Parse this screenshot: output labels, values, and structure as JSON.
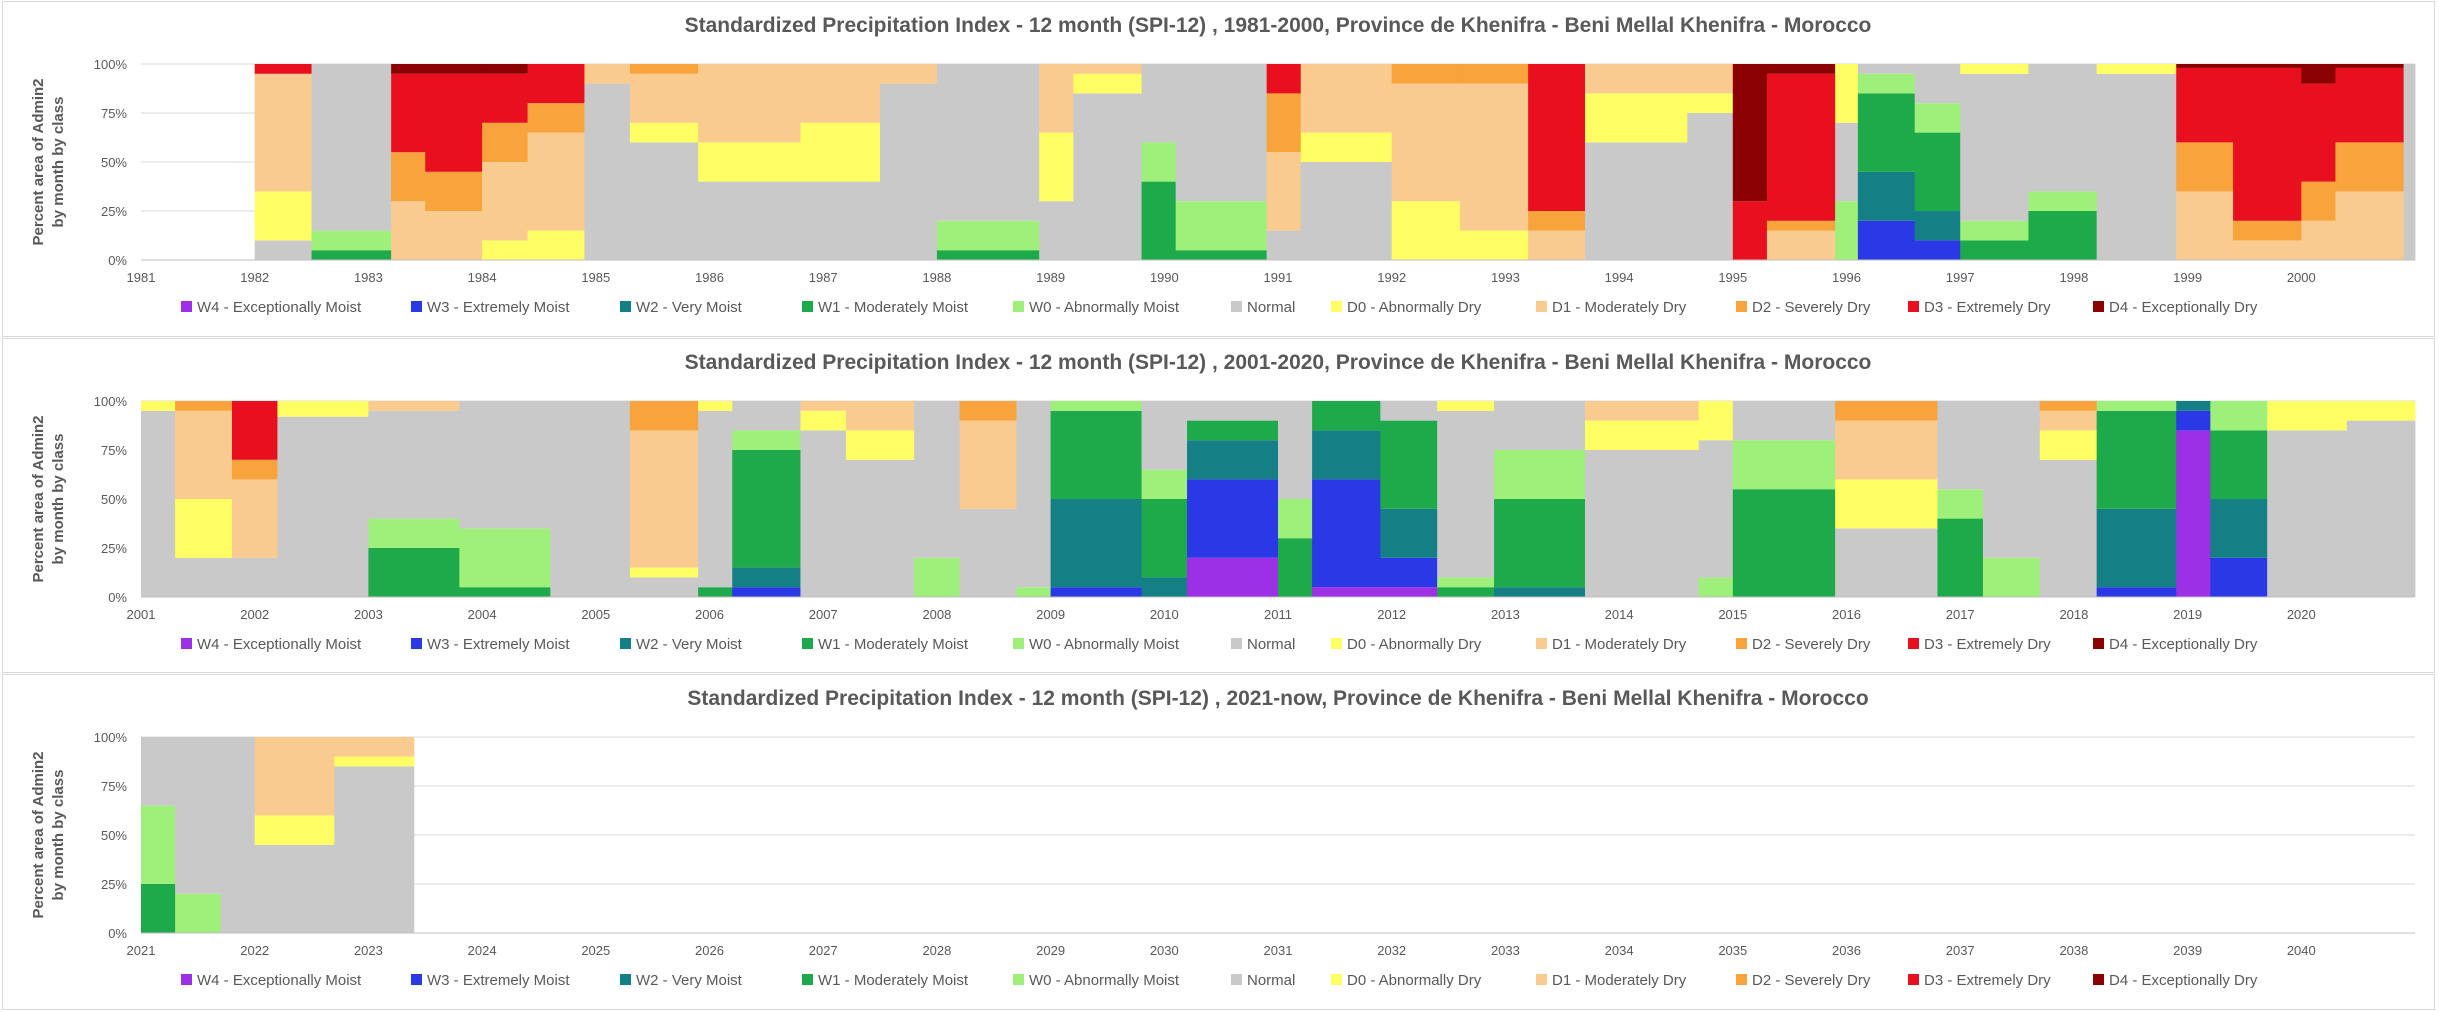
{
  "classes": [
    {
      "key": "W4",
      "label": "W4 - Exceptionally Moist",
      "color": "#9b30e5"
    },
    {
      "key": "W3",
      "label": "W3 - Extremely Moist",
      "color": "#2b38e6"
    },
    {
      "key": "W2",
      "label": "W2 - Very Moist",
      "color": "#157f86"
    },
    {
      "key": "W1",
      "label": "W1 - Moderately Moist",
      "color": "#1eaa4a"
    },
    {
      "key": "W0",
      "label": "W0 - Abnormally Moist",
      "color": "#9ef07a"
    },
    {
      "key": "N",
      "label": "Normal",
      "color": "#c9c9c9"
    },
    {
      "key": "D0",
      "label": "D0 - Abnormally Dry",
      "color": "#ffff63"
    },
    {
      "key": "D1",
      "label": "D1 - Moderately Dry",
      "color": "#f9cb8f"
    },
    {
      "key": "D2",
      "label": "D2 - Severely Dry",
      "color": "#f8a33c"
    },
    {
      "key": "D3",
      "label": "D3 - Extremely Dry",
      "color": "#e8101e"
    },
    {
      "key": "D4",
      "label": "D4 - Exceptionally Dry",
      "color": "#8b0000"
    }
  ],
  "chart_data": [
    {
      "type": "bar",
      "stacked": true,
      "title": "Standardized Precipitation Index - 12 month (SPI-12) , 1981-2000, Province de Khenifra - Beni Mellal Khenifra - Morocco",
      "ylabel": [
        "Percent area of Admin2",
        "by month by class"
      ],
      "yticks": [
        "0%",
        "25%",
        "50%",
        "75%",
        "100%"
      ],
      "ylim": [
        0,
        100
      ],
      "start_year": 1981,
      "years": [
        "1981",
        "1982",
        "1983",
        "1984",
        "1985",
        "1986",
        "1987",
        "1988",
        "1989",
        "1990",
        "1991",
        "1992",
        "1993",
        "1994",
        "1995",
        "1996",
        "1997",
        "1998",
        "1999",
        "2000"
      ],
      "segments": [
        {
          "x": [
            1982.0,
            1982.5
          ],
          "v": {
            "D1": 60,
            "D0": 25,
            "N": 10,
            "D3": 5
          }
        },
        {
          "x": [
            1982.5,
            1983.2
          ],
          "v": {
            "N": 85,
            "W0": 10,
            "W1": 5
          }
        },
        {
          "x": [
            1983.2,
            1983.5
          ],
          "v": {
            "D1": 30,
            "D2": 25,
            "D3": 40,
            "D4": 5
          }
        },
        {
          "x": [
            1983.5,
            1984.0
          ],
          "v": {
            "D1": 25,
            "D2": 20,
            "D3": 50,
            "D4": 5
          }
        },
        {
          "x": [
            1984.0,
            1984.4
          ],
          "v": {
            "D0": 10,
            "D1": 40,
            "D2": 20,
            "D3": 25,
            "D4": 5
          }
        },
        {
          "x": [
            1984.4,
            1984.9
          ],
          "v": {
            "D0": 15,
            "D1": 50,
            "D2": 15,
            "D3": 20
          }
        },
        {
          "x": [
            1984.9,
            1985.3
          ],
          "v": {
            "N": 90,
            "D1": 10
          }
        },
        {
          "x": [
            1985.3,
            1985.9
          ],
          "v": {
            "N": 60,
            "D0": 10,
            "D1": 25,
            "D2": 5
          }
        },
        {
          "x": [
            1985.9,
            1986.8
          ],
          "v": {
            "N": 40,
            "D0": 20,
            "D1": 40
          }
        },
        {
          "x": [
            1986.8,
            1987.5
          ],
          "v": {
            "N": 40,
            "D0": 30,
            "D1": 30
          }
        },
        {
          "x": [
            1987.5,
            1988.0
          ],
          "v": {
            "N": 90,
            "D1": 10
          }
        },
        {
          "x": [
            1988.0,
            1988.9
          ],
          "v": {
            "W0": 15,
            "N": 80,
            "W1": 5
          }
        },
        {
          "x": [
            1988.9,
            1989.2
          ],
          "v": {
            "N": 30,
            "D0": 35,
            "D1": 35
          }
        },
        {
          "x": [
            1989.2,
            1989.8
          ],
          "v": {
            "N": 85,
            "D0": 10,
            "D1": 5
          }
        },
        {
          "x": [
            1989.8,
            1990.1
          ],
          "v": {
            "W1": 40,
            "W0": 20,
            "N": 40
          }
        },
        {
          "x": [
            1990.1,
            1990.9
          ],
          "v": {
            "W0": 25,
            "N": 70,
            "W1": 5
          }
        },
        {
          "x": [
            1990.9,
            1991.2
          ],
          "v": {
            "D1": 40,
            "D2": 30,
            "D3": 15,
            "N": 15
          }
        },
        {
          "x": [
            1991.2,
            1992.0
          ],
          "v": {
            "N": 50,
            "D0": 15,
            "D1": 35
          }
        },
        {
          "x": [
            1992.0,
            1992.6
          ],
          "v": {
            "D0": 30,
            "D1": 60,
            "D2": 10
          }
        },
        {
          "x": [
            1992.6,
            1993.2
          ],
          "v": {
            "D0": 15,
            "D1": 75,
            "D2": 10
          }
        },
        {
          "x": [
            1993.2,
            1993.7
          ],
          "v": {
            "D1": 15,
            "D2": 10,
            "D3": 75
          }
        },
        {
          "x": [
            1993.7,
            1994.6
          ],
          "v": {
            "N": 60,
            "D0": 25,
            "D1": 15
          }
        },
        {
          "x": [
            1994.6,
            1995.0
          ],
          "v": {
            "N": 75,
            "D0": 10,
            "D1": 15
          }
        },
        {
          "x": [
            1995.0,
            1995.3
          ],
          "v": {
            "D3": 30,
            "D4": 70
          }
        },
        {
          "x": [
            1995.3,
            1995.9
          ],
          "v": {
            "D1": 15,
            "D2": 5,
            "D3": 75,
            "D4": 5
          }
        },
        {
          "x": [
            1995.9,
            1996.1
          ],
          "v": {
            "N": 40,
            "D0": 30,
            "W0": 30
          }
        },
        {
          "x": [
            1996.1,
            1996.6
          ],
          "v": {
            "W3": 20,
            "W2": 25,
            "W1": 40,
            "W0": 10,
            "N": 5
          }
        },
        {
          "x": [
            1996.6,
            1997.0
          ],
          "v": {
            "W3": 10,
            "W2": 15,
            "W1": 40,
            "W0": 15,
            "N": 20
          }
        },
        {
          "x": [
            1997.0,
            1997.6
          ],
          "v": {
            "W1": 10,
            "W0": 10,
            "N": 75,
            "D0": 5
          }
        },
        {
          "x": [
            1997.6,
            1998.2
          ],
          "v": {
            "W1": 25,
            "W0": 10,
            "N": 65
          }
        },
        {
          "x": [
            1998.2,
            1998.9
          ],
          "v": {
            "N": 95,
            "D0": 5
          }
        },
        {
          "x": [
            1998.9,
            1999.4
          ],
          "v": {
            "D1": 35,
            "D2": 25,
            "D3": 38,
            "D4": 2
          }
        },
        {
          "x": [
            1999.4,
            2000.0
          ],
          "v": {
            "D1": 10,
            "D2": 10,
            "D3": 78,
            "D4": 2
          }
        },
        {
          "x": [
            2000.0,
            2000.3
          ],
          "v": {
            "D1": 20,
            "D2": 20,
            "D3": 50,
            "D4": 10
          }
        },
        {
          "x": [
            2000.3,
            2000.9
          ],
          "v": {
            "D1": 35,
            "D2": 25,
            "D3": 38,
            "D4": 2
          }
        },
        {
          "x": [
            2000.9,
            2001.0
          ],
          "v": {
            "N": 100
          }
        }
      ]
    },
    {
      "type": "bar",
      "stacked": true,
      "title": "Standardized Precipitation Index - 12 month (SPI-12) , 2001-2020, Province de Khenifra - Beni Mellal Khenifra - Morocco",
      "ylabel": [
        "Percent area of Admin2",
        "by month by class"
      ],
      "yticks": [
        "0%",
        "25%",
        "50%",
        "75%",
        "100%"
      ],
      "ylim": [
        0,
        100
      ],
      "start_year": 2001,
      "years": [
        "2001",
        "2002",
        "2003",
        "2004",
        "2005",
        "2006",
        "2007",
        "2008",
        "2009",
        "2010",
        "2011",
        "2012",
        "2013",
        "2014",
        "2015",
        "2016",
        "2017",
        "2018",
        "2019",
        "2020"
      ],
      "segments": [
        {
          "x": [
            2001.0,
            2001.3
          ],
          "v": {
            "N": 95,
            "D0": 5
          }
        },
        {
          "x": [
            2001.3,
            2001.8
          ],
          "v": {
            "N": 20,
            "D0": 30,
            "D1": 45,
            "D2": 5
          }
        },
        {
          "x": [
            2001.8,
            2002.2
          ],
          "v": {
            "N": 20,
            "D1": 40,
            "D2": 10,
            "D3": 30
          }
        },
        {
          "x": [
            2002.2,
            2003.0
          ],
          "v": {
            "N": 92,
            "D0": 8
          }
        },
        {
          "x": [
            2003.0,
            2003.8
          ],
          "v": {
            "W1": 25,
            "W0": 15,
            "N": 55,
            "D1": 5
          }
        },
        {
          "x": [
            2003.8,
            2004.6
          ],
          "v": {
            "W1": 5,
            "W0": 30,
            "N": 65
          }
        },
        {
          "x": [
            2004.6,
            2005.3
          ],
          "v": {
            "N": 100
          }
        },
        {
          "x": [
            2005.3,
            2005.9
          ],
          "v": {
            "N": 10,
            "D0": 5,
            "D1": 70,
            "D2": 15
          }
        },
        {
          "x": [
            2005.9,
            2006.2
          ],
          "v": {
            "W1": 5,
            "N": 90,
            "D0": 5
          }
        },
        {
          "x": [
            2006.2,
            2006.8
          ],
          "v": {
            "W3": 5,
            "W2": 10,
            "W1": 60,
            "W0": 10,
            "N": 15
          }
        },
        {
          "x": [
            2006.8,
            2007.2
          ],
          "v": {
            "N": 85,
            "D0": 10,
            "D1": 5
          }
        },
        {
          "x": [
            2007.2,
            2007.8
          ],
          "v": {
            "N": 70,
            "D0": 15,
            "D1": 15
          }
        },
        {
          "x": [
            2007.8,
            2008.2
          ],
          "v": {
            "W0": 20,
            "N": 80
          }
        },
        {
          "x": [
            2008.2,
            2008.7
          ],
          "v": {
            "N": 45,
            "D1": 45,
            "D2": 10
          }
        },
        {
          "x": [
            2008.7,
            2009.0
          ],
          "v": {
            "N": 95,
            "W0": 5
          }
        },
        {
          "x": [
            2009.0,
            2009.8
          ],
          "v": {
            "W3": 5,
            "W2": 45,
            "W1": 45,
            "W0": 5
          }
        },
        {
          "x": [
            2009.8,
            2010.2
          ],
          "v": {
            "W2": 10,
            "W1": 40,
            "W0": 15,
            "N": 35
          }
        },
        {
          "x": [
            2010.2,
            2011.0
          ],
          "v": {
            "W4": 20,
            "W3": 40,
            "W2": 20,
            "W1": 10,
            "N": 10
          }
        },
        {
          "x": [
            2011.0,
            2011.3
          ],
          "v": {
            "W1": 30,
            "W0": 20,
            "N": 50
          }
        },
        {
          "x": [
            2011.3,
            2011.9
          ],
          "v": {
            "W4": 5,
            "W3": 55,
            "W2": 25,
            "W1": 15
          }
        },
        {
          "x": [
            2011.9,
            2012.4
          ],
          "v": {
            "W4": 5,
            "W3": 15,
            "W2": 25,
            "W1": 45,
            "N": 10
          }
        },
        {
          "x": [
            2012.4,
            2012.9
          ],
          "v": {
            "W1": 5,
            "W0": 5,
            "N": 85,
            "D0": 5
          }
        },
        {
          "x": [
            2012.9,
            2013.7
          ],
          "v": {
            "W2": 5,
            "W1": 45,
            "W0": 25,
            "N": 25
          }
        },
        {
          "x": [
            2013.7,
            2014.7
          ],
          "v": {
            "N": 75,
            "D0": 15,
            "D1": 10
          }
        },
        {
          "x": [
            2014.7,
            2015.0
          ],
          "v": {
            "W0": 10,
            "N": 70,
            "D0": 20
          }
        },
        {
          "x": [
            2015.0,
            2015.9
          ],
          "v": {
            "W1": 55,
            "W0": 25,
            "N": 20
          }
        },
        {
          "x": [
            2015.9,
            2016.8
          ],
          "v": {
            "N": 35,
            "D0": 25,
            "D1": 30,
            "D2": 10
          }
        },
        {
          "x": [
            2016.8,
            2017.2
          ],
          "v": {
            "W1": 40,
            "W0": 15,
            "N": 45
          }
        },
        {
          "x": [
            2017.2,
            2017.7
          ],
          "v": {
            "W0": 20,
            "N": 80
          }
        },
        {
          "x": [
            2017.7,
            2018.2
          ],
          "v": {
            "N": 70,
            "D0": 15,
            "D1": 10,
            "D2": 5
          }
        },
        {
          "x": [
            2018.2,
            2018.9
          ],
          "v": {
            "W3": 5,
            "W2": 40,
            "W1": 50,
            "W0": 5
          }
        },
        {
          "x": [
            2018.9,
            2019.2
          ],
          "v": {
            "W4": 85,
            "W3": 10,
            "W2": 5
          }
        },
        {
          "x": [
            2019.2,
            2019.7
          ],
          "v": {
            "W3": 20,
            "W2": 30,
            "W1": 35,
            "W0": 15
          }
        },
        {
          "x": [
            2019.7,
            2020.4
          ],
          "v": {
            "N": 85,
            "D0": 15
          }
        },
        {
          "x": [
            2020.4,
            2021.0
          ],
          "v": {
            "N": 90,
            "D0": 10
          }
        }
      ]
    },
    {
      "type": "bar",
      "stacked": true,
      "title": "Standardized Precipitation Index - 12 month (SPI-12) , 2021-now, Province de Khenifra - Beni Mellal Khenifra - Morocco",
      "ylabel": [
        "Percent area of Admin2",
        "by month by class"
      ],
      "yticks": [
        "0%",
        "25%",
        "50%",
        "75%",
        "100%"
      ],
      "ylim": [
        0,
        100
      ],
      "start_year": 2021,
      "years": [
        "2021",
        "2022",
        "2023",
        "2024",
        "2025",
        "2026",
        "2027",
        "2028",
        "2029",
        "2030",
        "2031",
        "2032",
        "2033",
        "2034",
        "2035",
        "2036",
        "2037",
        "2038",
        "2039",
        "2040"
      ],
      "segments": [
        {
          "x": [
            2021.0,
            2021.3
          ],
          "v": {
            "W1": 25,
            "W0": 40,
            "N": 35
          }
        },
        {
          "x": [
            2021.3,
            2021.7
          ],
          "v": {
            "W0": 20,
            "N": 80
          }
        },
        {
          "x": [
            2021.7,
            2022.0
          ],
          "v": {
            "N": 100
          }
        },
        {
          "x": [
            2022.0,
            2022.7
          ],
          "v": {
            "N": 45,
            "D0": 15,
            "D1": 40
          }
        },
        {
          "x": [
            2022.7,
            2023.4
          ],
          "v": {
            "N": 85,
            "D0": 5,
            "D1": 10
          }
        }
      ]
    }
  ]
}
